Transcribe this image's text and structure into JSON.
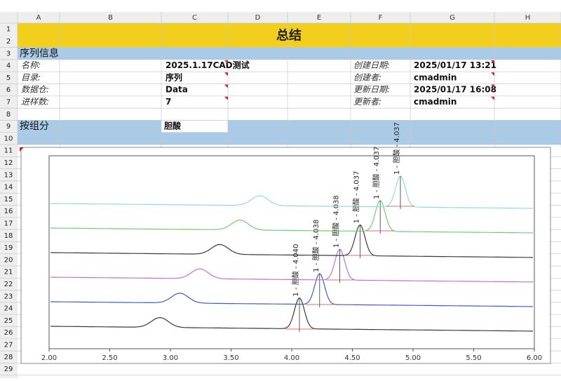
{
  "column_headers": [
    "A",
    "B",
    "C",
    "D",
    "E",
    "F",
    "G",
    "H"
  ],
  "row_numbers": [
    1,
    2,
    3,
    4,
    5,
    6,
    7,
    8,
    9,
    10,
    11,
    12,
    13,
    14,
    15,
    16,
    17,
    18,
    19,
    20,
    21,
    22,
    23,
    24,
    25,
    26,
    27,
    28,
    29
  ],
  "title": "总结",
  "sections": {
    "sequence_info": "序列信息",
    "by_component": "按组分"
  },
  "sequence_fields": [
    {
      "label": "名称:",
      "value": "2025.1.17CAD测试"
    },
    {
      "label": "目录:",
      "value": "序列"
    },
    {
      "label": "数据仓:",
      "value": "Data"
    },
    {
      "label": "进样数:",
      "value": "7"
    }
  ],
  "meta_fields": [
    {
      "label": "创建日期:",
      "value": "2025/01/17 13:21"
    },
    {
      "label": "创建者:",
      "value": "cmadmin"
    },
    {
      "label": "更新日期:",
      "value": "2025/01/17 16:08"
    },
    {
      "label": "更新者:",
      "value": "cmadmin"
    }
  ],
  "component": "胆酸",
  "chart": {
    "xlim": [
      2,
      6
    ],
    "xticks": [
      {
        "value": 2,
        "label": "2.00"
      },
      {
        "value": 2.5,
        "label": "2.50"
      },
      {
        "value": 3,
        "label": "3.00"
      },
      {
        "value": 3.5,
        "label": "3.50"
      },
      {
        "value": 4,
        "label": "4.00"
      },
      {
        "value": 4.5,
        "label": "4.50"
      },
      {
        "value": 5,
        "label": "5.00"
      },
      {
        "value": 5.5,
        "label": "5.50"
      },
      {
        "value": 6,
        "label": "6.00"
      }
    ],
    "peak_labels": [
      "1 - 胆酸 - 4.040",
      "1 - 胆酸 - 4.038",
      "1 - 胆酸 - 4.038",
      "1 - 胆酸 - 4.037",
      "1 - 胆酸 - 4.037",
      "1 - 胆酸 - 4.037"
    ]
  }
}
